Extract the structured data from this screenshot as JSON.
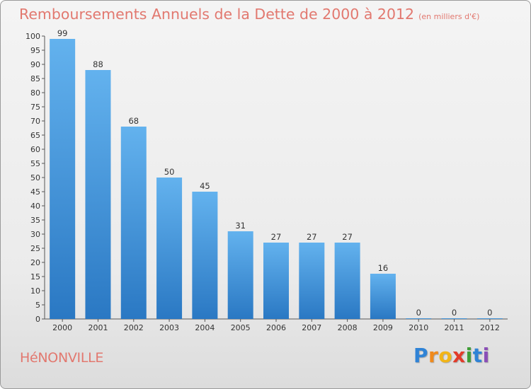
{
  "header": {
    "title": "Remboursements Annuels de la Dette de 2000 à 2012",
    "unit": "(en milliers d'€)"
  },
  "commune": "HéNONVILLE",
  "logo": {
    "letters": [
      "P",
      "r",
      "o",
      "x",
      "i",
      "t",
      "i"
    ],
    "colors": [
      "#2f83d6",
      "#f08a1c",
      "#f2b517",
      "#e23b2a",
      "#3f9d36",
      "#2f83d6",
      "#8a4fb7"
    ]
  },
  "colors": {
    "bar_light": "#63b2ee",
    "bar_dark": "#2a78c3",
    "title": "#e2786f"
  },
  "chart_data": {
    "type": "bar",
    "categories": [
      "2000",
      "2001",
      "2002",
      "2003",
      "2004",
      "2005",
      "2006",
      "2007",
      "2008",
      "2009",
      "2010",
      "2011",
      "2012"
    ],
    "values": [
      99,
      88,
      68,
      50,
      45,
      31,
      27,
      27,
      27,
      16,
      0,
      0,
      0
    ],
    "title": "Remboursements Annuels de la Dette de 2000 à 2012",
    "xlabel": "",
    "ylabel": "",
    "ylim": [
      0,
      100
    ],
    "yticks": [
      0,
      5,
      10,
      15,
      20,
      25,
      30,
      35,
      40,
      45,
      50,
      55,
      60,
      65,
      70,
      75,
      80,
      85,
      90,
      95,
      100
    ],
    "grid": false,
    "legend": "none"
  }
}
